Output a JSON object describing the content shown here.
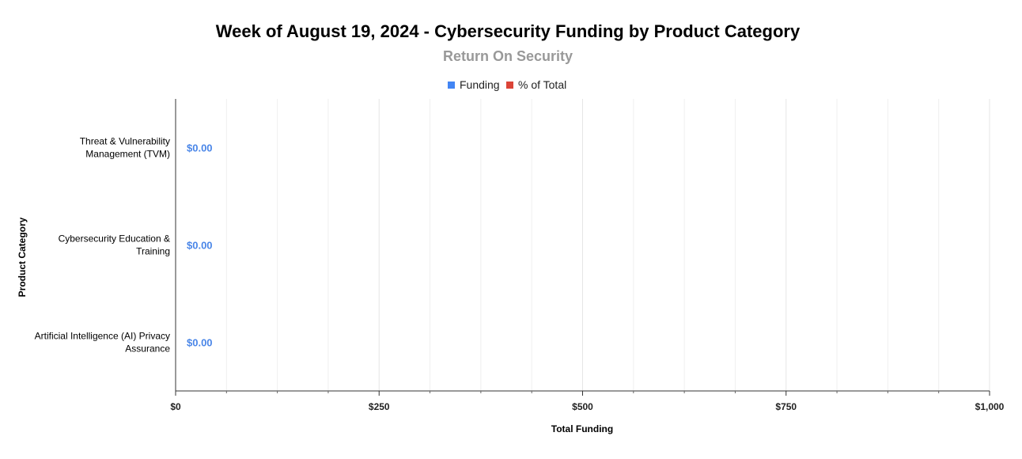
{
  "chart_data": {
    "type": "bar",
    "orientation": "horizontal",
    "title": "Week of August 19, 2024 - Cybersecurity Funding by Product Category",
    "subtitle": "Return On Security",
    "xlabel": "Total Funding",
    "ylabel": "Product Category",
    "legend_position": "top",
    "legend": [
      {
        "name": "Funding",
        "color": "#4285f4"
      },
      {
        "name": "% of Total",
        "color": "#db4437"
      }
    ],
    "categories": [
      [
        "Threat & Vulnerability",
        "Management (TVM)"
      ],
      [
        "Cybersecurity Education &",
        "Training"
      ],
      [
        "Artificial Intelligence (AI) Privacy",
        "Assurance"
      ]
    ],
    "series": [
      {
        "name": "Funding",
        "values": [
          0,
          0,
          0
        ],
        "color": "#4285f4"
      }
    ],
    "data_labels": [
      "$0.00",
      "$0.00",
      "$0.00"
    ],
    "xlim": [
      0,
      1000
    ],
    "x_ticks": [
      0,
      250,
      500,
      750,
      1000
    ],
    "x_tick_labels": [
      "$0",
      "$250",
      "$500",
      "$750",
      "$1,000"
    ],
    "minor_ticks_per_major": 3,
    "grid": true,
    "colors": {
      "title": "#000000",
      "subtitle": "#999999",
      "data_label": "#4a86e8",
      "grid": "#e6e6e6",
      "axis": "#333333"
    }
  }
}
